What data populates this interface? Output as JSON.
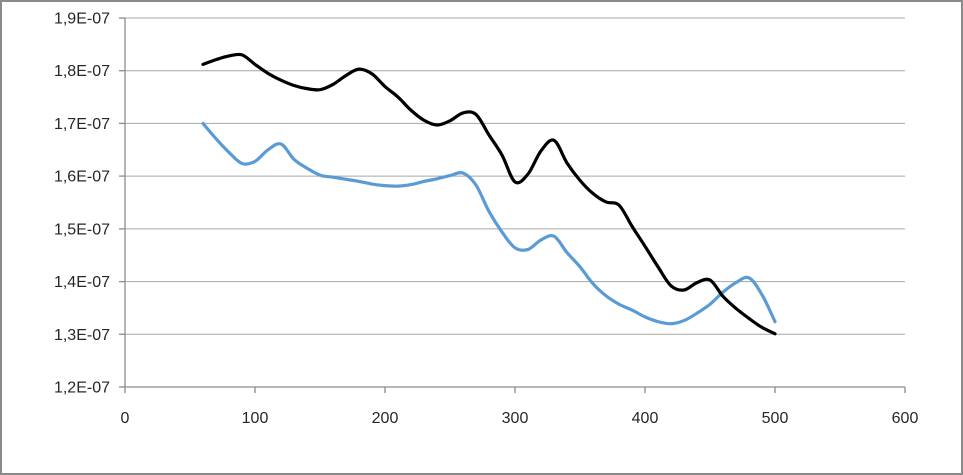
{
  "window": {
    "background_color": "#FFFFFF",
    "border_color": "#8A8A8A"
  },
  "colors": {
    "gridline": "#A6A6A6",
    "axis": "#8C8C8C",
    "tick_text": "#262626",
    "series_blue": "#5B9BD5",
    "series_black": "#000000"
  },
  "chart_data": {
    "type": "line",
    "title": "",
    "xlabel": "",
    "ylabel": "",
    "grid": "horizontal",
    "legend": "none",
    "x_axis": {
      "min": 0,
      "max": 600,
      "tick_values": [
        0,
        100,
        200,
        300,
        400,
        500,
        600
      ],
      "tick_labels": [
        "0",
        "100",
        "200",
        "300",
        "400",
        "500",
        "600"
      ]
    },
    "y_axis": {
      "min": 1.2e-07,
      "max": 1.9e-07,
      "tick_values": [
        1.2e-07,
        1.3e-07,
        1.4e-07,
        1.5e-07,
        1.6e-07,
        1.7e-07,
        1.8e-07,
        1.9e-07
      ],
      "tick_labels": [
        "1,2E-07",
        "1,3E-07",
        "1,4E-07",
        "1,5E-07",
        "1,6E-07",
        "1,7E-07",
        "1,8E-07",
        "1,9E-07"
      ]
    },
    "series": [
      {
        "name": "blue-series",
        "color": "#5B9BD5",
        "line_width": 3.2,
        "smooth": true,
        "x": [
          60,
          70,
          80,
          90,
          100,
          110,
          120,
          130,
          140,
          150,
          160,
          170,
          180,
          190,
          200,
          210,
          220,
          230,
          240,
          250,
          260,
          270,
          280,
          290,
          300,
          310,
          320,
          330,
          340,
          350,
          360,
          370,
          380,
          390,
          400,
          410,
          420,
          430,
          440,
          450,
          460,
          470,
          480,
          490,
          500
        ],
        "y": [
          1.7e-07,
          1.671e-07,
          1.645e-07,
          1.624e-07,
          1.628e-07,
          1.65e-07,
          1.661e-07,
          1.632e-07,
          1.615e-07,
          1.602e-07,
          1.598e-07,
          1.594e-07,
          1.59e-07,
          1.585e-07,
          1.582e-07,
          1.581e-07,
          1.584e-07,
          1.59e-07,
          1.595e-07,
          1.601e-07,
          1.606e-07,
          1.583e-07,
          1.533e-07,
          1.494e-07,
          1.464e-07,
          1.461e-07,
          1.479e-07,
          1.486e-07,
          1.455e-07,
          1.428e-07,
          1.396e-07,
          1.373e-07,
          1.357e-07,
          1.346e-07,
          1.333e-07,
          1.324e-07,
          1.32e-07,
          1.326e-07,
          1.34e-07,
          1.357e-07,
          1.38e-07,
          1.398e-07,
          1.407e-07,
          1.375e-07,
          1.324e-07
        ]
      },
      {
        "name": "black-series",
        "color": "#000000",
        "line_width": 3.2,
        "smooth": true,
        "x": [
          60,
          70,
          80,
          90,
          100,
          110,
          120,
          130,
          140,
          150,
          160,
          170,
          180,
          190,
          200,
          210,
          220,
          230,
          240,
          250,
          260,
          270,
          280,
          290,
          300,
          310,
          320,
          330,
          340,
          350,
          360,
          370,
          380,
          390,
          400,
          410,
          420,
          430,
          440,
          450,
          460,
          470,
          480,
          490,
          500
        ],
        "y": [
          1.812e-07,
          1.821e-07,
          1.828e-07,
          1.83e-07,
          1.812e-07,
          1.795e-07,
          1.782e-07,
          1.772e-07,
          1.766e-07,
          1.764e-07,
          1.774e-07,
          1.791e-07,
          1.803e-07,
          1.794e-07,
          1.77e-07,
          1.75e-07,
          1.725e-07,
          1.706e-07,
          1.697e-07,
          1.705e-07,
          1.72e-07,
          1.717e-07,
          1.678e-07,
          1.64e-07,
          1.589e-07,
          1.604e-07,
          1.648e-07,
          1.668e-07,
          1.625e-07,
          1.592e-07,
          1.567e-07,
          1.551e-07,
          1.545e-07,
          1.505e-07,
          1.467e-07,
          1.428e-07,
          1.392e-07,
          1.384e-07,
          1.398e-07,
          1.403e-07,
          1.372e-07,
          1.349e-07,
          1.33e-07,
          1.313e-07,
          1.301e-07
        ]
      }
    ]
  }
}
